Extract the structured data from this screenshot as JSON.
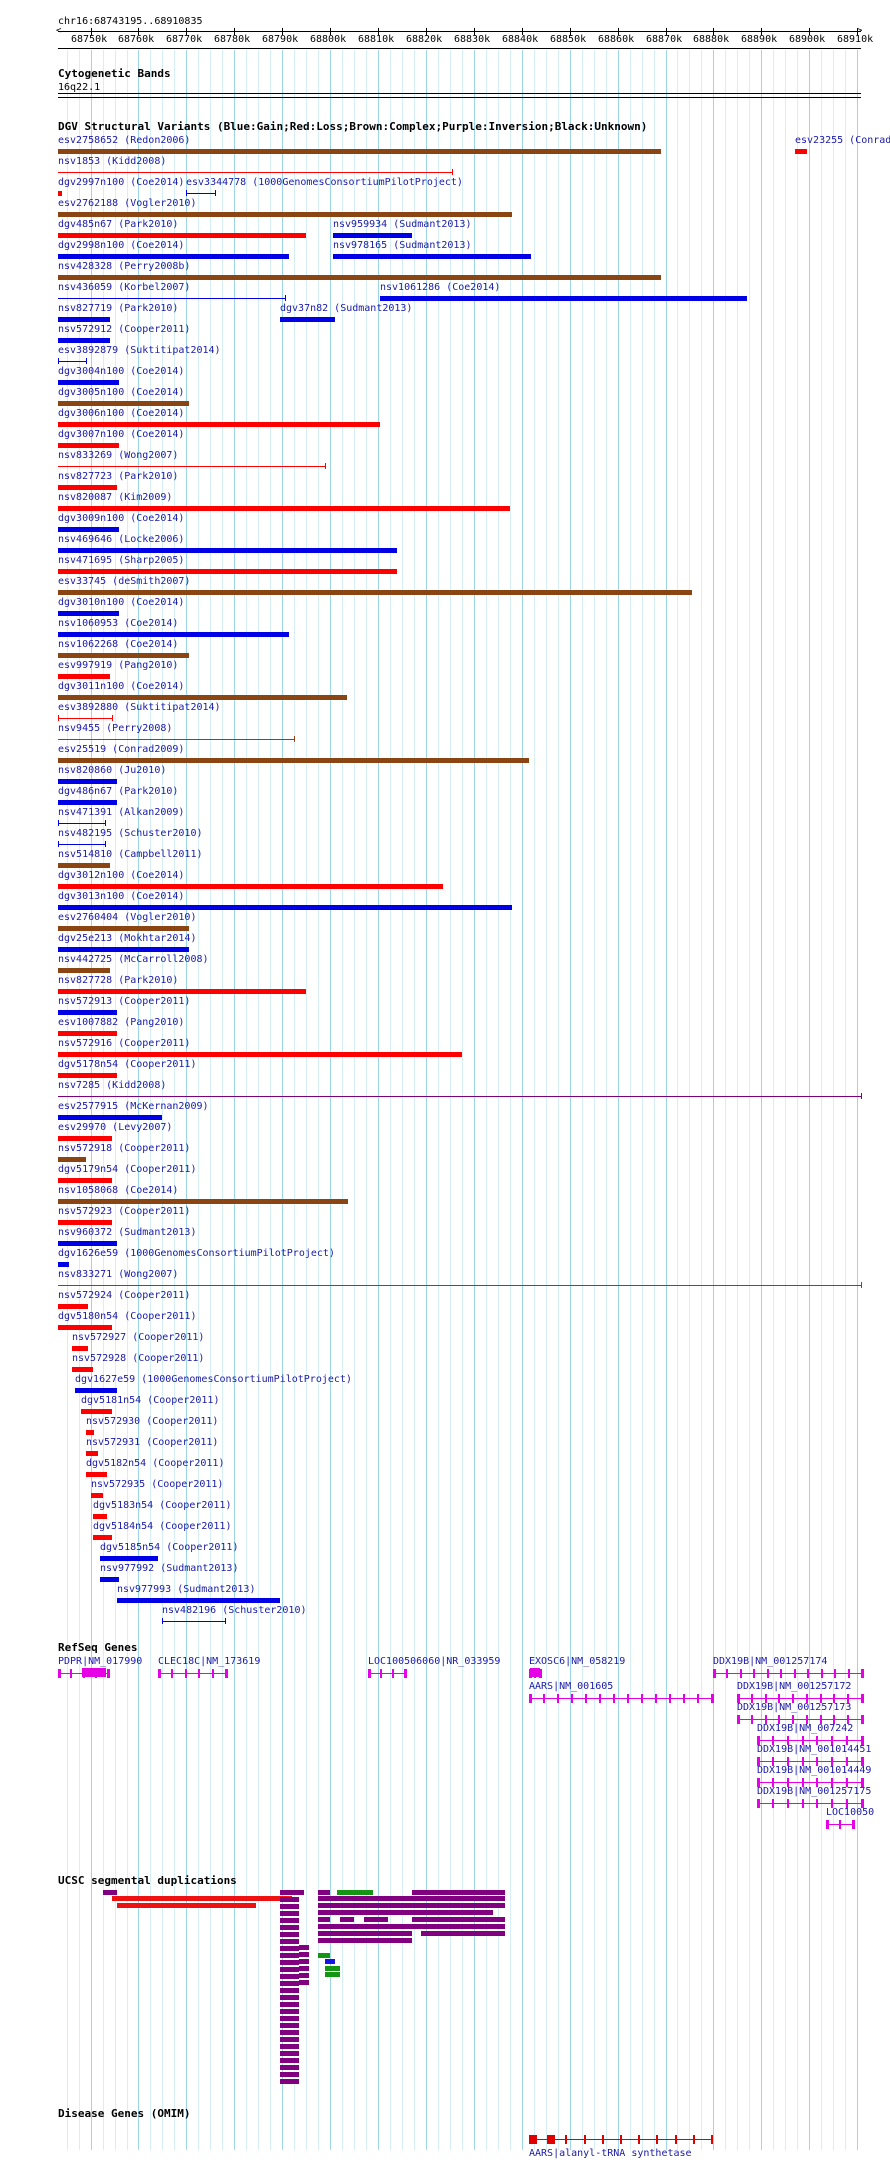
{
  "header": {
    "position": "chr16:68743195..68910835",
    "ticks": [
      "68750k",
      "68760k",
      "68770k",
      "68780k",
      "68790k",
      "68800k",
      "68810k",
      "68820k",
      "68830k",
      "68840k",
      "68850k",
      "68860k",
      "68870k",
      "68880k",
      "68890k",
      "68900k",
      "68910k"
    ]
  },
  "colors": {
    "gain": "#0000e6",
    "loss": "#ff0000",
    "complex": "#8b4513",
    "inversion": "#7d007d",
    "unknown": "#000000",
    "gene": "#e600e6",
    "segdup_purple": "#800080",
    "segdup_red": "#ee1111",
    "segdup_green": "#149614",
    "segdup_blue": "#1414e6",
    "omim": "#e00000",
    "grid": "#bfe6f2"
  },
  "cytoband": {
    "title": "Cytogenetic Bands",
    "band": "16q22.1"
  },
  "dgv": {
    "title": "DGV Structural Variants (Blue:Gain;Red:Loss;Brown:Complex;Purple:Inversion;Black:Unknown)",
    "variants": [
      {
        "label": "esv2758652 (Redon2006)",
        "c": "complex",
        "k": "bar",
        "s": 68743.2,
        "e": 68869.0
      },
      {
        "label": "esv23255 (Conrad2",
        "c": "loss",
        "k": "bar",
        "s": 68897.0,
        "e": 68899.5
      },
      {
        "label": "nsv1853 (Kidd2008)",
        "c": "loss",
        "k": "line",
        "s": 68743.2,
        "e": 68825.5
      },
      {
        "label": "dgv2997n100 (Coe2014)",
        "c": "loss",
        "k": "bar",
        "s": 68743.2,
        "e": 68744.0
      },
      {
        "label": "esv3344778 (1000GenomesConsortiumPilotProject)",
        "c": "gain",
        "k": "span",
        "s": 68770.0,
        "e": 68776.0
      },
      {
        "label": "esv2762188 (Vogler2010)",
        "c": "complex",
        "k": "bar",
        "s": 68743.2,
        "e": 68838.0
      },
      {
        "label": "dgv485n67 (Park2010)",
        "c": "loss",
        "k": "bar",
        "s": 68743.2,
        "e": 68795.0
      },
      {
        "label": "nsv959934 (Sudmant2013)",
        "c": "gain",
        "k": "bar",
        "s": 68800.5,
        "e": 68817.0
      },
      {
        "label": "dgv2998n100 (Coe2014)",
        "c": "gain",
        "k": "bar",
        "s": 68743.2,
        "e": 68791.5
      },
      {
        "label": "nsv978165 (Sudmant2013)",
        "c": "gain",
        "k": "bar",
        "s": 68800.5,
        "e": 68842.0
      },
      {
        "label": "nsv428328 (Perry2008b)",
        "c": "complex",
        "k": "bar",
        "s": 68743.2,
        "e": 68869.0
      },
      {
        "label": "nsv436059 (Korbel2007)",
        "c": "gain",
        "k": "line",
        "s": 68743.2,
        "e": 68790.5
      },
      {
        "label": "nsv1061286 (Coe2014)",
        "c": "gain",
        "k": "bar",
        "s": 68810.5,
        "e": 68887.0
      },
      {
        "label": "nsv827719 (Park2010)",
        "c": "gain",
        "k": "bar",
        "s": 68743.2,
        "e": 68754.0
      },
      {
        "label": "dgv37n82 (Sudmant2013)",
        "c": "gain",
        "k": "bar",
        "s": 68789.5,
        "e": 68801.0
      },
      {
        "label": "nsv572912 (Cooper2011)",
        "c": "gain",
        "k": "bar",
        "s": 68743.2,
        "e": 68754.0
      },
      {
        "label": "esv3892879 (Suktitipat2014)",
        "c": "gain",
        "k": "span",
        "s": 68743.2,
        "e": 68749.0
      },
      {
        "label": "dgv3004n100 (Coe2014)",
        "c": "gain",
        "k": "bar",
        "s": 68743.2,
        "e": 68756.0
      },
      {
        "label": "dgv3005n100 (Coe2014)",
        "c": "complex",
        "k": "bar",
        "s": 68743.2,
        "e": 68770.5
      },
      {
        "label": "dgv3006n100 (Coe2014)",
        "c": "loss",
        "k": "bar",
        "s": 68743.2,
        "e": 68810.5
      },
      {
        "label": "dgv3007n100 (Coe2014)",
        "c": "loss",
        "k": "bar",
        "s": 68743.2,
        "e": 68756.0
      },
      {
        "label": "nsv833269 (Wong2007)",
        "c": "loss",
        "k": "line",
        "s": 68743.2,
        "e": 68799.0
      },
      {
        "label": "nsv827723 (Park2010)",
        "c": "loss",
        "k": "bar",
        "s": 68743.2,
        "e": 68755.5
      },
      {
        "label": "nsv820087 (Kim2009)",
        "c": "loss",
        "k": "bar",
        "s": 68743.2,
        "e": 68837.5
      },
      {
        "label": "dgv3009n100 (Coe2014)",
        "c": "gain",
        "k": "bar",
        "s": 68743.2,
        "e": 68756.0
      },
      {
        "label": "nsv469646 (Locke2006)",
        "c": "gain",
        "k": "bar",
        "s": 68743.2,
        "e": 68814.0
      },
      {
        "label": "nsv471695 (Sharp2005)",
        "c": "loss",
        "k": "bar",
        "s": 68743.2,
        "e": 68814.0
      },
      {
        "label": "esv33745 (deSmith2007)",
        "c": "complex",
        "k": "bar",
        "s": 68743.2,
        "e": 68875.5
      },
      {
        "label": "dgv3010n100 (Coe2014)",
        "c": "gain",
        "k": "bar",
        "s": 68743.2,
        "e": 68756.0
      },
      {
        "label": "nsv1060953 (Coe2014)",
        "c": "gain",
        "k": "bar",
        "s": 68743.2,
        "e": 68791.5
      },
      {
        "label": "nsv1062268 (Coe2014)",
        "c": "complex",
        "k": "bar",
        "s": 68743.2,
        "e": 68770.5
      },
      {
        "label": "esv997919 (Pang2010)",
        "c": "loss",
        "k": "bar",
        "s": 68743.2,
        "e": 68754.0
      },
      {
        "label": "dgv3011n100 (Coe2014)",
        "c": "complex",
        "k": "bar",
        "s": 68743.2,
        "e": 68803.5
      },
      {
        "label": "esv3892880 (Suktitipat2014)",
        "c": "loss",
        "k": "span",
        "s": 68743.2,
        "e": 68754.5
      },
      {
        "label": "nsv9455 (Perry2008)",
        "c": "complex",
        "k": "line",
        "s": 68743.2,
        "e": 68792.5
      },
      {
        "label": "esv25519 (Conrad2009)",
        "c": "complex",
        "k": "bar",
        "s": 68743.2,
        "e": 68841.5
      },
      {
        "label": "nsv820860 (Ju2010)",
        "c": "gain",
        "k": "bar",
        "s": 68743.2,
        "e": 68755.5
      },
      {
        "label": "dgv486n67 (Park2010)",
        "c": "gain",
        "k": "bar",
        "s": 68743.2,
        "e": 68755.5
      },
      {
        "label": "nsv471391 (Alkan2009)",
        "c": "gain",
        "k": "span",
        "s": 68743.2,
        "e": 68753.0
      },
      {
        "label": "nsv482195 (Schuster2010)",
        "c": "gain",
        "k": "span",
        "s": 68743.2,
        "e": 68753.0
      },
      {
        "label": "nsv514810 (Campbell2011)",
        "c": "complex",
        "k": "bar",
        "s": 68743.2,
        "e": 68754.0
      },
      {
        "label": "dgv3012n100 (Coe2014)",
        "c": "loss",
        "k": "bar",
        "s": 68743.2,
        "e": 68823.5
      },
      {
        "label": "dgv3013n100 (Coe2014)",
        "c": "gain",
        "k": "bar",
        "s": 68743.2,
        "e": 68838.0
      },
      {
        "label": "esv2760404 (Vogler2010)",
        "c": "complex",
        "k": "bar",
        "s": 68743.2,
        "e": 68770.5
      },
      {
        "label": "dgv25e213 (Mokhtar2014)",
        "c": "gain",
        "k": "bar",
        "s": 68743.2,
        "e": 68770.5
      },
      {
        "label": "nsv442725 (McCarroll2008)",
        "c": "complex",
        "k": "bar",
        "s": 68743.2,
        "e": 68754.0
      },
      {
        "label": "nsv827728 (Park2010)",
        "c": "loss",
        "k": "bar",
        "s": 68743.2,
        "e": 68795.0
      },
      {
        "label": "nsv572913 (Cooper2011)",
        "c": "gain",
        "k": "bar",
        "s": 68743.2,
        "e": 68755.5
      },
      {
        "label": "esv1007882 (Pang2010)",
        "c": "loss",
        "k": "bar",
        "s": 68743.2,
        "e": 68755.5
      },
      {
        "label": "nsv572916 (Cooper2011)",
        "c": "loss",
        "k": "bar",
        "s": 68743.2,
        "e": 68827.5
      },
      {
        "label": "dgv5178n54 (Cooper2011)",
        "c": "loss",
        "k": "bar",
        "s": 68743.2,
        "e": 68755.5
      },
      {
        "label": "nsv7285 (Kidd2008)",
        "c": "inversion",
        "k": "line",
        "s": 68743.2,
        "e": 68910.8
      },
      {
        "label": "esv2577915 (McKernan2009)",
        "c": "gain",
        "k": "bar",
        "s": 68743.2,
        "e": 68765.0
      },
      {
        "label": "esv29970 (Levy2007)",
        "c": "loss",
        "k": "bar",
        "s": 68743.2,
        "e": 68754.5
      },
      {
        "label": "nsv572918 (Cooper2011)",
        "c": "complex",
        "k": "bar",
        "s": 68743.2,
        "e": 68749.0
      },
      {
        "label": "dgv5179n54 (Cooper2011)",
        "c": "loss",
        "k": "bar",
        "s": 68743.2,
        "e": 68754.5
      },
      {
        "label": "nsv1058068 (Coe2014)",
        "c": "complex",
        "k": "bar",
        "s": 68743.2,
        "e": 68803.8
      },
      {
        "label": "nsv572923 (Cooper2011)",
        "c": "loss",
        "k": "bar",
        "s": 68743.2,
        "e": 68754.5
      },
      {
        "label": "nsv960372 (Sudmant2013)",
        "c": "gain",
        "k": "bar",
        "s": 68743.2,
        "e": 68755.5
      },
      {
        "label": "dgv1626e59 (1000GenomesConsortiumPilotProject)",
        "c": "gain",
        "k": "bar",
        "s": 68743.2,
        "e": 68745.5
      },
      {
        "label": "nsv833271 (Wong2007)",
        "c": "complex",
        "k": "line",
        "s": 68743.2,
        "e": 68910.8
      },
      {
        "label": "nsv572924 (Cooper2011)",
        "c": "loss",
        "k": "bar",
        "s": 68743.2,
        "e": 68749.5
      },
      {
        "label": "dgv5180n54 (Cooper2011)",
        "c": "loss",
        "k": "bar",
        "s": 68743.2,
        "e": 68754.5
      },
      {
        "label": "nsv572927 (Cooper2011)",
        "c": "loss",
        "k": "bar",
        "s": 68746.2,
        "e": 68749.5
      },
      {
        "label": "nsv572928 (Cooper2011)",
        "c": "loss",
        "k": "bar",
        "s": 68746.2,
        "e": 68750.5
      },
      {
        "label": "dgv1627e59 (1000GenomesConsortiumPilotProject)",
        "c": "gain",
        "k": "bar",
        "s": 68746.8,
        "e": 68755.5
      },
      {
        "label": "dgv5181n54 (Cooper2011)",
        "c": "loss",
        "k": "bar",
        "s": 68748.0,
        "e": 68754.5
      },
      {
        "label": "nsv572930 (Cooper2011)",
        "c": "loss",
        "k": "bar",
        "s": 68749.0,
        "e": 68750.8
      },
      {
        "label": "nsv572931 (Cooper2011)",
        "c": "loss",
        "k": "bar",
        "s": 68749.0,
        "e": 68751.5
      },
      {
        "label": "dgv5182n54 (Cooper2011)",
        "c": "loss",
        "k": "bar",
        "s": 68749.0,
        "e": 68753.5
      },
      {
        "label": "nsv572935 (Cooper2011)",
        "c": "loss",
        "k": "bar",
        "s": 68750.0,
        "e": 68752.5
      },
      {
        "label": "dgv5183n54 (Cooper2011)",
        "c": "loss",
        "k": "bar",
        "s": 68750.5,
        "e": 68753.5
      },
      {
        "label": "dgv5184n54 (Cooper2011)",
        "c": "loss",
        "k": "bar",
        "s": 68750.5,
        "e": 68754.5
      },
      {
        "label": "dgv5185n54 (Cooper2011)",
        "c": "gain",
        "k": "bar",
        "s": 68752.0,
        "e": 68764.0
      },
      {
        "label": "nsv977992 (Sudmant2013)",
        "c": "gain",
        "k": "bar",
        "s": 68752.0,
        "e": 68756.0
      },
      {
        "label": "nsv977993 (Sudmant2013)",
        "c": "gain",
        "k": "bar",
        "s": 68755.5,
        "e": 68789.5
      },
      {
        "label": "nsv482196 (Schuster2010)",
        "c": "gain",
        "k": "span",
        "s": 68765.0,
        "e": 68778.0
      }
    ]
  },
  "refseq": {
    "title": "RefSeq Genes",
    "genes": [
      {
        "label": "PDPR|NM_017990",
        "s": 68743.2,
        "e": 68753.5,
        "line": 0
      },
      {
        "label": "CLEC18C|NM_173619",
        "s": 68764.0,
        "e": 68778.0,
        "line": 0
      },
      {
        "label": "LOC100506060|NR_033959",
        "s": 68808.0,
        "e": 68815.5,
        "line": 0
      },
      {
        "label": "EXOSC6|NM_058219",
        "s": 68841.5,
        "e": 68843.5,
        "line": 0
      },
      {
        "label": "DDX19B|NM_001257174",
        "s": 68880.0,
        "e": 68910.8,
        "line": 0
      },
      {
        "label": "AARS|NM_001605",
        "s": 68841.5,
        "e": 68879.5,
        "line": 1
      },
      {
        "label": "DDX19B|NM_001257172",
        "s": 68885.0,
        "e": 68910.8,
        "line": 1
      },
      {
        "label": "DDX19B|NM_001257173",
        "s": 68885.0,
        "e": 68910.8,
        "line": 2
      },
      {
        "label": "DDX19B|NM_007242",
        "s": 68889.0,
        "e": 68910.8,
        "line": 3
      },
      {
        "label": "DDX19B|NM_001014451",
        "s": 68889.0,
        "e": 68910.8,
        "line": 4
      },
      {
        "label": "DDX19B|NM_001014449",
        "s": 68889.0,
        "e": 68910.8,
        "line": 5
      },
      {
        "label": "DDX19B|NM_001257175",
        "s": 68889.0,
        "e": 68910.8,
        "line": 6
      },
      {
        "label": "LOC10050",
        "s": 68903.5,
        "e": 68909.0,
        "line": 7
      }
    ]
  },
  "segdups": {
    "title": "UCSC segmental duplications"
  },
  "omim": {
    "title": "Disease Genes (OMIM)",
    "genes": [
      {
        "label": "AARS|alanyl-tRNA synthetase",
        "s": 68841.5,
        "e": 68879.5
      }
    ]
  }
}
